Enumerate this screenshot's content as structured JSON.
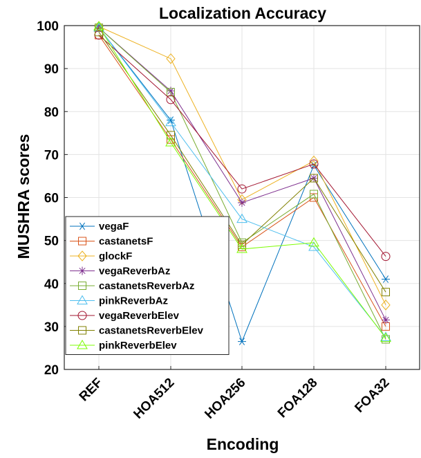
{
  "chart_data": {
    "type": "line",
    "title": "Localization Accuracy",
    "xlabel": "Encoding",
    "ylabel": "MUSHRA scores",
    "categories": [
      "REF",
      "HOA512",
      "HOA256",
      "FOA128",
      "FOA32"
    ],
    "ylim": [
      20,
      100
    ],
    "yticks": [
      20,
      30,
      40,
      50,
      60,
      70,
      80,
      90,
      100
    ],
    "grid": true,
    "legend_position": "lower-left",
    "series": [
      {
        "name": "vegaF",
        "color": "#0072BD",
        "marker": "asterisk",
        "values": [
          99.5,
          78,
          26.5,
          67.5,
          41
        ]
      },
      {
        "name": "castanetsF",
        "color": "#D95319",
        "marker": "square",
        "values": [
          97.8,
          73.5,
          48.5,
          60,
          30
        ]
      },
      {
        "name": "glockF",
        "color": "#EDB120",
        "marker": "diamond",
        "values": [
          99.8,
          92.3,
          59.5,
          68.5,
          35
        ]
      },
      {
        "name": "vegaReverbAz",
        "color": "#7E2F8E",
        "marker": "star",
        "values": [
          99.5,
          84.8,
          58.8,
          64.5,
          31.5
        ]
      },
      {
        "name": "castanetsReverbAz",
        "color": "#77AC30",
        "marker": "square",
        "values": [
          99.5,
          84.5,
          49.5,
          60.8,
          27
        ]
      },
      {
        "name": "pinkReverbAz",
        "color": "#4DBEEE",
        "marker": "triangle",
        "values": [
          99.5,
          77.5,
          55,
          48.5,
          27.5
        ]
      },
      {
        "name": "vegaReverbElev",
        "color": "#A2142F",
        "marker": "circle",
        "values": [
          97.8,
          82.8,
          62,
          67.8,
          46.3
        ]
      },
      {
        "name": "castanetsReverbElev",
        "color": "#808000",
        "marker": "square",
        "values": [
          98.5,
          74.5,
          49,
          64.5,
          38
        ]
      },
      {
        "name": "pinkReverbElev",
        "color": "#7CFC00",
        "marker": "triangle",
        "values": [
          99.8,
          72.8,
          48,
          49.5,
          27.3
        ]
      }
    ]
  }
}
